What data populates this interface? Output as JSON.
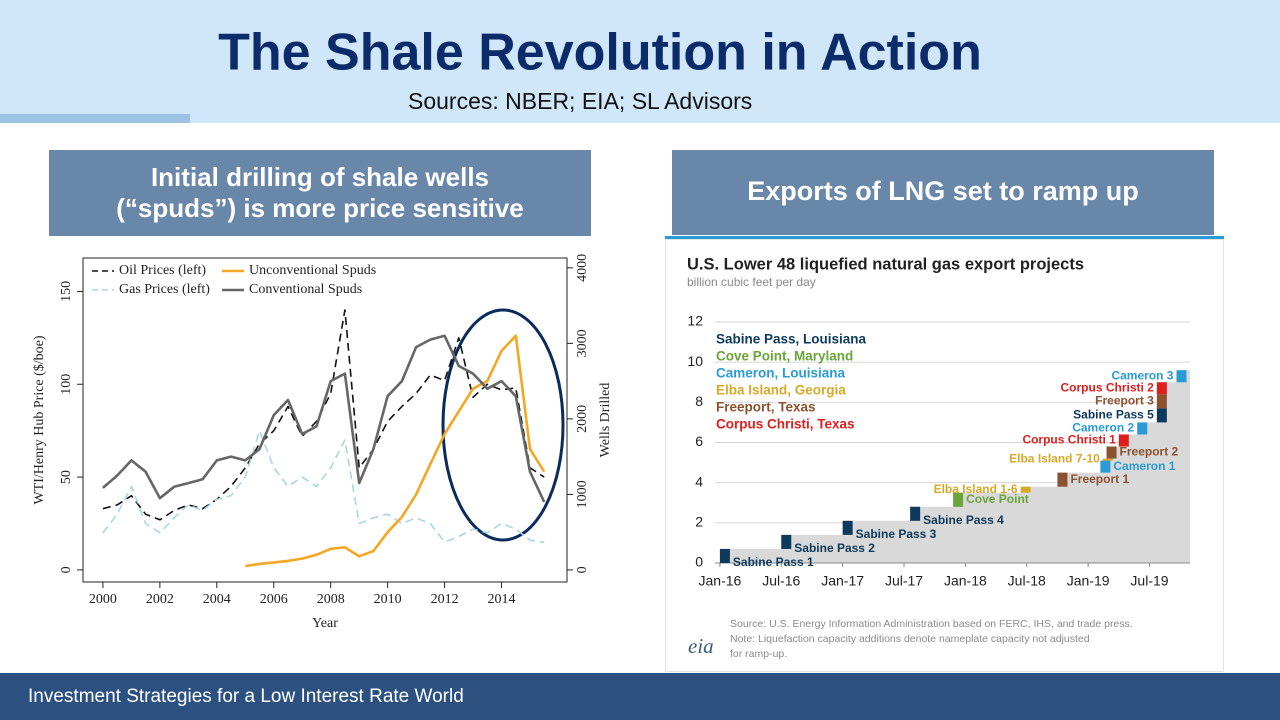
{
  "title": "The Shale Revolution in Action",
  "sources": "Sources: NBER; EIA; SL Advisors",
  "footer": "Investment Strategies for a Low Interest Rate World",
  "panels": [
    {
      "heading": [
        "Initial drilling of shale wells",
        "(“spuds”) is more price sensitive"
      ]
    },
    {
      "heading": [
        "Exports of LNG set to ramp up"
      ]
    }
  ],
  "chart_data": [
    {
      "type": "line",
      "xlabel": "Year",
      "ylabel": "WTI/Henry Hub Price ($/boe)",
      "y2label": "Wells Drilled",
      "x": [
        2000,
        2000.5,
        2001,
        2001.5,
        2002,
        2002.5,
        2003,
        2003.5,
        2004,
        2004.5,
        2005,
        2005.5,
        2006,
        2006.5,
        2007,
        2007.5,
        2008,
        2008.5,
        2009,
        2009.5,
        2010,
        2010.5,
        2011,
        2011.5,
        2012,
        2012.5,
        2013,
        2013.5,
        2014,
        2014.5,
        2015,
        2015.5
      ],
      "xlim": [
        1999.3,
        2016.3
      ],
      "xticks": [
        2000,
        2002,
        2004,
        2006,
        2008,
        2010,
        2012,
        2014
      ],
      "ylim": [
        -6.5,
        168
      ],
      "yticks": [
        0,
        50,
        100,
        150
      ],
      "y2lim": [
        -160,
        4130
      ],
      "y2ticks": [
        0,
        1000,
        2000,
        3000,
        4000
      ],
      "series": [
        {
          "name": "Oil Prices (left)",
          "color": "#111111",
          "line_style": "dashed",
          "values": [
            33,
            35,
            40,
            30,
            27,
            32,
            35,
            33,
            38,
            45,
            55,
            68,
            75,
            88,
            72,
            80,
            95,
            140,
            55,
            65,
            80,
            88,
            95,
            105,
            102,
            125,
            93,
            100,
            97,
            98,
            55,
            50
          ]
        },
        {
          "name": "Gas Prices (left)",
          "color": "#a9d6e5",
          "line_style": "dashed",
          "values": [
            20,
            30,
            45,
            25,
            20,
            28,
            35,
            32,
            38,
            40,
            50,
            75,
            55,
            45,
            50,
            45,
            55,
            70,
            25,
            28,
            30,
            25,
            28,
            25,
            15,
            18,
            22,
            20,
            25,
            22,
            16,
            15
          ]
        },
        {
          "name": "Unconventional Spuds",
          "color": "#f5a623",
          "line_style": "solid",
          "axis": "y2",
          "values": [
            null,
            null,
            null,
            null,
            null,
            null,
            null,
            null,
            null,
            null,
            50,
            80,
            100,
            120,
            150,
            200,
            280,
            300,
            180,
            250,
            500,
            700,
            1000,
            1400,
            1800,
            2100,
            2400,
            2500,
            2900,
            3100,
            1600,
            1300
          ]
        },
        {
          "name": "Conventional Spuds",
          "color": "#666666",
          "line_style": "solid",
          "axis": "y2",
          "values": [
            1086,
            1250,
            1450,
            1300,
            950,
            1100,
            1150,
            1200,
            1450,
            1500,
            1450,
            1600,
            2050,
            2250,
            1800,
            1900,
            2500,
            2600,
            1150,
            1600,
            2300,
            2500,
            2950,
            3050,
            3100,
            2700,
            2600,
            2400,
            2500,
            2300,
            1300,
            900
          ]
        }
      ]
    },
    {
      "type": "step-area",
      "title": "U.S. Lower 48 liquefied natural gas export projects",
      "subtitle": "billion cubic feet per day",
      "xlim": [
        2015.96,
        2019.83
      ],
      "xticks": [
        {
          "value": 2016,
          "label": "Jan-16"
        },
        {
          "value": 2016.5,
          "label": "Jul-16"
        },
        {
          "value": 2017,
          "label": "Jan-17"
        },
        {
          "value": 2017.5,
          "label": "Jul-17"
        },
        {
          "value": 2018,
          "label": "Jan-18"
        },
        {
          "value": 2018.5,
          "label": "Jul-18"
        },
        {
          "value": 2019,
          "label": "Jan-19"
        },
        {
          "value": 2019.5,
          "label": "Jul-19"
        }
      ],
      "ylim": [
        0,
        12
      ],
      "yticks": [
        0,
        2,
        4,
        6,
        8,
        10,
        12
      ],
      "grid": true,
      "area_color": "#d9d9d9",
      "facilities": [
        {
          "name": "Sabine Pass, Louisiana",
          "color": "#0d3a5c",
          "projects": [
            {
              "label": "Sabine Pass 1",
              "x": 2016.0,
              "value": 0.7
            },
            {
              "label": "Sabine Pass 2",
              "x": 2016.5,
              "value": 0.7
            },
            {
              "label": "Sabine Pass 3",
              "x": 2017.0,
              "value": 0.7
            },
            {
              "label": "Sabine Pass 4",
              "x": 2017.55,
              "value": 0.7
            },
            {
              "label": "Sabine Pass 5",
              "x": 2019.56,
              "value": 0.7
            }
          ]
        },
        {
          "name": "Cove Point, Maryland",
          "color": "#6aa539",
          "projects": [
            {
              "label": "Cove Point",
              "x": 2017.9,
              "value": 0.7
            }
          ]
        },
        {
          "name": "Cameron, Louisiana",
          "color": "#2a9bd6",
          "projects": [
            {
              "label": "Cameron 1",
              "x": 2019.1,
              "value": 0.6
            },
            {
              "label": "Cameron 2",
              "x": 2019.4,
              "value": 0.6
            },
            {
              "label": "Cameron 3",
              "x": 2019.72,
              "value": 0.6
            }
          ]
        },
        {
          "name": "Elba Island, Georgia",
          "color": "#d8a82a",
          "projects": [
            {
              "label": "Elba Island 1-6",
              "x": 2018.45,
              "value": 0.3
            },
            {
              "label": "Elba Island 7-10",
              "x": 2019.12,
              "value": 0.1
            }
          ]
        },
        {
          "name": "Freeport, Texas",
          "color": "#8c5230",
          "projects": [
            {
              "label": "Freeport 1",
              "x": 2018.75,
              "value": 0.7
            },
            {
              "label": "Freeport 2",
              "x": 2019.15,
              "value": 0.6
            },
            {
              "label": "Freeport 3",
              "x": 2019.56,
              "value": 0.7
            }
          ]
        },
        {
          "name": "Corpus Christi, Texas",
          "color": "#e01e1e",
          "projects": [
            {
              "label": "Corpus Christi 1",
              "x": 2019.25,
              "value": 0.6
            },
            {
              "label": "Corpus Christi 2",
              "x": 2019.56,
              "value": 0.6
            }
          ]
        }
      ],
      "notes": [
        "Source: U.S. Energy Information Administration based on FERC, IHS, and trade press.",
        "Note: Liquefaction capacity additions denote nameplate capacity not adjusted",
        "for ramp-up."
      ],
      "logo": "eia"
    }
  ]
}
